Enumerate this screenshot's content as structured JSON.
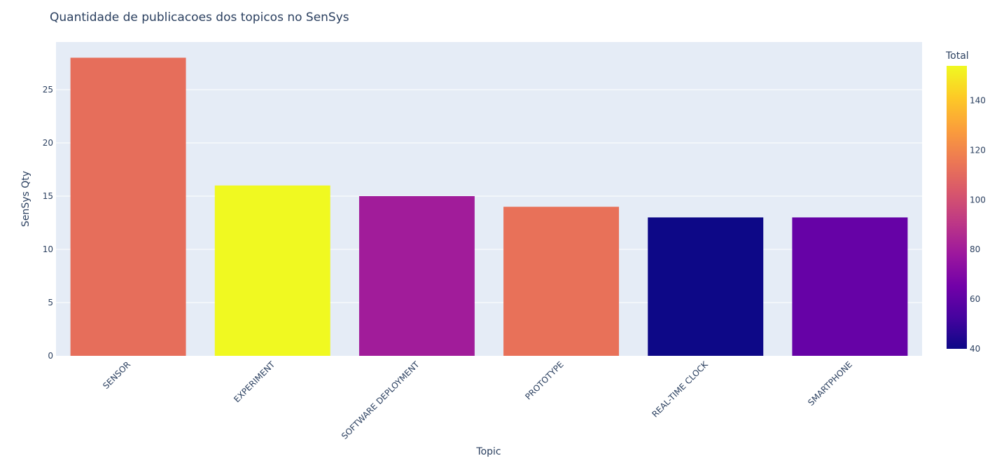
{
  "chart_data": {
    "type": "bar",
    "title": "Quantidade de publicacoes dos topicos no SenSys",
    "xlabel": "Topic",
    "ylabel": "SenSys  Qty",
    "categories": [
      "SENSOR",
      "EXPERIMENT",
      "SOFTWARE DEPLOYMENT",
      "PROTOTYPE",
      "REAL-TIME CLOCK",
      "SMARTPHONE"
    ],
    "values": [
      28,
      16,
      15,
      14,
      13,
      13
    ],
    "color_values": [
      112,
      154,
      80,
      113,
      40,
      62
    ],
    "ylim": [
      0,
      29.5
    ],
    "yticks": [
      0,
      5,
      10,
      15,
      20,
      25
    ],
    "grid": true,
    "colorbar": {
      "title": "Total",
      "range": [
        40,
        154
      ],
      "ticks": [
        40,
        60,
        80,
        100,
        120,
        140
      ],
      "colorscale": [
        "#0d0887",
        "#46039f",
        "#7201a8",
        "#9c179e",
        "#bd3786",
        "#d8576b",
        "#ed7953",
        "#fb9f3a",
        "#fdca26",
        "#f0f921"
      ]
    },
    "plot_background": "#e5ecf6"
  }
}
